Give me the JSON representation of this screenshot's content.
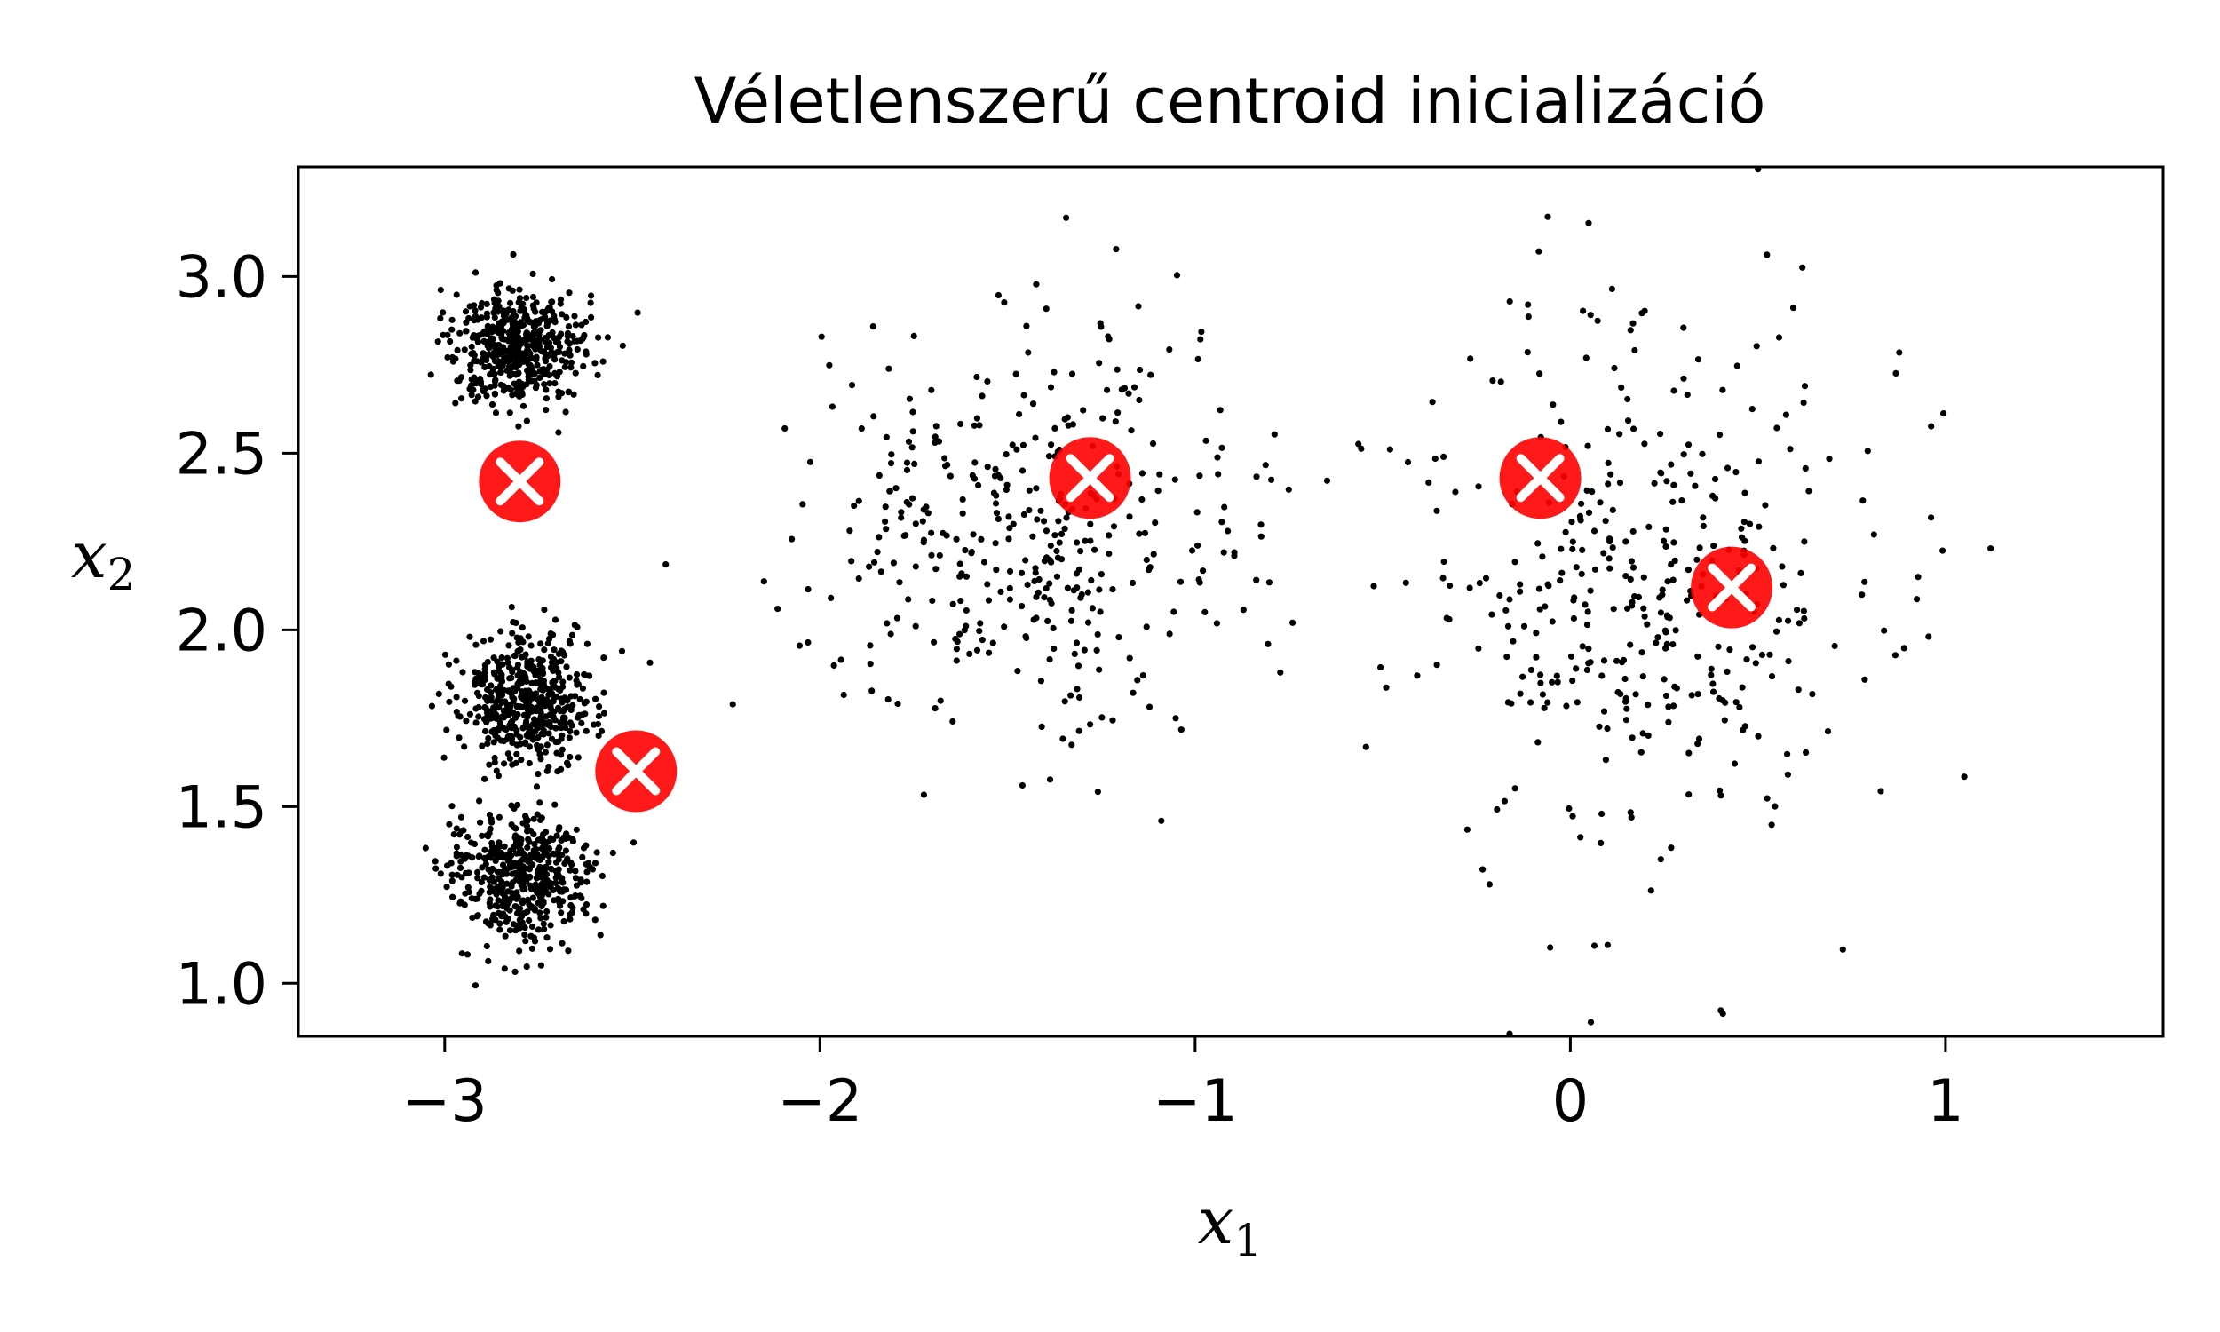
{
  "chart_data": {
    "type": "scatter",
    "title": "Véletlenszerű centroid inicializáció",
    "xlabel": "x",
    "xlabel_subscript": "1",
    "ylabel": "x",
    "ylabel_subscript": "2",
    "xlim": [
      -3.39,
      1.58
    ],
    "ylim": [
      0.85,
      3.31
    ],
    "xticks": [
      -3,
      -2,
      -1,
      0,
      1
    ],
    "xtick_labels": [
      "−3",
      "−2",
      "−1",
      "0",
      "1"
    ],
    "yticks": [
      1.0,
      1.5,
      2.0,
      2.5,
      3.0
    ],
    "ytick_labels": [
      "1.0",
      "1.5",
      "2.0",
      "2.5",
      "3.0"
    ],
    "grid": false,
    "point_color": "#000000",
    "centroid_color": "#ff0000",
    "clusters": [
      {
        "center": [
          -2.8,
          2.8
        ],
        "std": [
          0.09,
          0.09
        ],
        "n": 500
      },
      {
        "center": [
          -2.79,
          1.8
        ],
        "std": [
          0.09,
          0.09
        ],
        "n": 500
      },
      {
        "center": [
          -2.79,
          1.3
        ],
        "std": [
          0.09,
          0.09
        ],
        "n": 500
      },
      {
        "center": [
          -1.47,
          2.29
        ],
        "std": [
          0.3,
          0.3
        ],
        "n": 400
      },
      {
        "center": [
          0.2,
          2.1
        ],
        "std": [
          0.3,
          0.4
        ],
        "n": 400
      }
    ],
    "centroids": [
      {
        "x": -2.8,
        "y": 2.42
      },
      {
        "x": -2.49,
        "y": 1.6
      },
      {
        "x": -1.28,
        "y": 2.43
      },
      {
        "x": -0.08,
        "y": 2.43
      },
      {
        "x": 0.43,
        "y": 2.12
      }
    ]
  }
}
